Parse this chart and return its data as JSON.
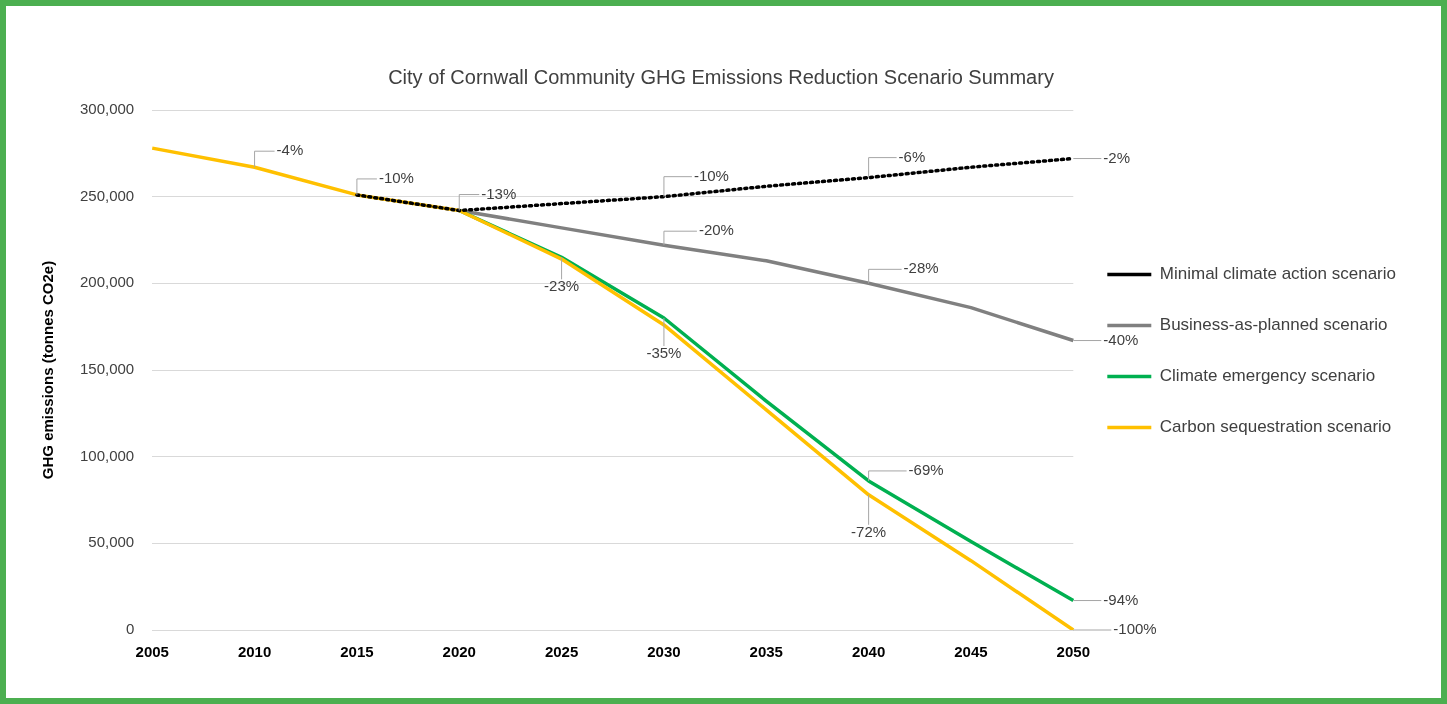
{
  "chart_data": {
    "type": "line",
    "title": "City of Cornwall Community GHG Emissions Reduction Scenario Summary",
    "ylabel": "GHG emissions (tonnes CO2e)",
    "categories": [
      "2005",
      "2010",
      "2015",
      "2020",
      "2025",
      "2030",
      "2035",
      "2040",
      "2045",
      "2050"
    ],
    "series": [
      {
        "name": "Minimal climate action scenario",
        "color": "#000000",
        "line_style": "dotted",
        "values": [
          null,
          null,
          251000,
          242000,
          246000,
          250000,
          256000,
          261000,
          267000,
          272000
        ]
      },
      {
        "name": "Business-as-planned scenario",
        "color": "#808080",
        "line_style": "solid",
        "values": [
          null,
          null,
          null,
          242000,
          232000,
          222000,
          213000,
          200000,
          186000,
          167000
        ]
      },
      {
        "name": "Climate emergency scenario",
        "color": "#00b050",
        "line_style": "solid",
        "values": [
          null,
          null,
          null,
          242000,
          215000,
          180000,
          132000,
          86000,
          51000,
          17000
        ]
      },
      {
        "name": "Carbon sequestration scenario",
        "color": "#ffc000",
        "line_style": "solid",
        "values": [
          278000,
          267000,
          251000,
          242000,
          214000,
          176000,
          127000,
          78000,
          40000,
          0
        ]
      }
    ],
    "ylim": [
      0,
      300000
    ],
    "yticks": [
      0,
      {
        "value": 50000,
        "label": "50,000"
      },
      {
        "value": 100000,
        "label": "100,000"
      },
      {
        "value": 150000,
        "label": "150,000"
      },
      {
        "value": 200000,
        "label": "200,000"
      },
      {
        "value": 250000,
        "label": "250,000"
      },
      {
        "value": 300000,
        "label": "300,000"
      }
    ],
    "grid": "y",
    "legend": "right",
    "marker": "none",
    "annotations": [
      {
        "text": "-4%",
        "x": "2010",
        "y": 267000
      },
      {
        "text": "-10%",
        "x": "2015",
        "y": 251000
      },
      {
        "text": "-13%",
        "x": "2020",
        "y": 242000
      },
      {
        "text": "-10%",
        "x": "2030",
        "y": 250000
      },
      {
        "text": "-6%",
        "x": "2040",
        "y": 261000
      },
      {
        "text": "-2%",
        "x": "2050",
        "y": 272000
      },
      {
        "text": "-20%",
        "x": "2030",
        "y": 222000
      },
      {
        "text": "-28%",
        "x": "2040",
        "y": 200000
      },
      {
        "text": "-40%",
        "x": "2050",
        "y": 167000
      },
      {
        "text": "-23%",
        "x": "2025",
        "y": 215000
      },
      {
        "text": "-35%",
        "x": "2030",
        "y": 180000
      },
      {
        "text": "-69%",
        "x": "2040",
        "y": 86000
      },
      {
        "text": "-72%",
        "x": "2040",
        "y": 78000
      },
      {
        "text": "-94%",
        "x": "2050",
        "y": 17000
      },
      {
        "text": "-100%",
        "x": "2050",
        "y": 0
      }
    ]
  }
}
